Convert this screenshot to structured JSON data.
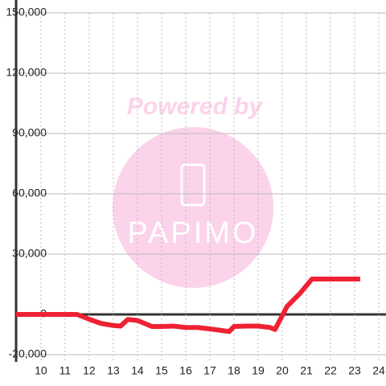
{
  "chart_data": {
    "type": "line",
    "x": [
      8.97,
      11.5,
      12,
      12.5,
      13,
      13.3,
      13.6,
      14,
      14.3,
      14.6,
      15,
      15.5,
      16,
      16.5,
      17,
      17.5,
      17.8,
      18,
      18.5,
      19,
      19.5,
      19.7,
      20.2,
      20.73,
      21.23,
      23.23
    ],
    "series": [
      {
        "color": "#ee2233",
        "values": [
          0,
          0,
          -2400,
          -4500,
          -5500,
          -5800,
          -2500,
          -3000,
          -4500,
          -6000,
          -6000,
          -5800,
          -6500,
          -6500,
          -7200,
          -8000,
          -8500,
          -6000,
          -5800,
          -5800,
          -6500,
          -7500,
          4000,
          10400,
          17600,
          17600
        ]
      }
    ],
    "xlim": [
      8.97,
      24.3
    ],
    "xticks": [
      10,
      11,
      12,
      13,
      14,
      15,
      16,
      17,
      18,
      19,
      20,
      21,
      22,
      23,
      24
    ],
    "ylim": [
      -23600,
      150000
    ],
    "yticks": [
      {
        "value": -20000,
        "label": "-20,000"
      },
      0,
      {
        "value": 30000,
        "label": "30,000"
      },
      {
        "value": 60000,
        "label": "60,000"
      },
      {
        "value": 90000,
        "label": "90,000"
      },
      {
        "value": 120000,
        "label": "120,000"
      },
      {
        "value": 150000,
        "label": "150,000"
      }
    ],
    "grid": true
  },
  "watermark": {
    "text": "Powered by",
    "logo": "PAPIMO"
  }
}
